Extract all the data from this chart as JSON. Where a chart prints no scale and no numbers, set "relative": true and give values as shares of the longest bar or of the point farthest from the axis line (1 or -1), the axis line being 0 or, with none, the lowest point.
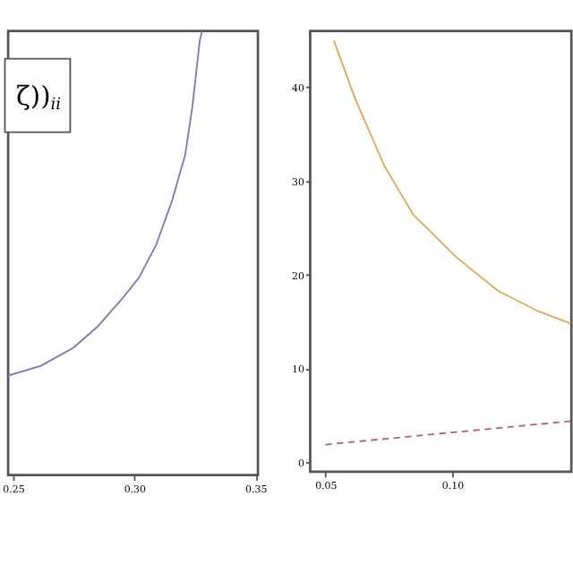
{
  "chart_data": [
    {
      "type": "line",
      "relative": true,
      "xlim": [
        0.248,
        0.351
      ],
      "xticks": [
        0.25,
        {
          "value": 0.3,
          "label": "0.30"
        },
        0.35
      ],
      "tick_labels": "x",
      "grid": false,
      "annotations": [
        "ζ))$_{ii}$"
      ],
      "series": [
        {
          "color": "#7a7ab4",
          "line_style": "solid",
          "x": [
            0.248,
            0.2615,
            0.275,
            0.285,
            0.295,
            0.302,
            0.309,
            0.3156,
            0.321,
            0.324,
            0.327,
            0.328
          ],
          "values": [
            0.224,
            0.246,
            0.287,
            0.335,
            0.397,
            0.445,
            0.518,
            0.618,
            0.721,
            0.831,
            0.978,
            1
          ]
        }
      ]
    },
    {
      "type": "line",
      "xlim": [
        0.044,
        0.147
      ],
      "ylim": [
        -1,
        46
      ],
      "xticks": [
        0.05,
        {
          "value": 0.1,
          "label": "0.10"
        }
      ],
      "yticks": [
        0,
        10,
        20,
        30,
        40
      ],
      "grid": false,
      "series": [
        {
          "color": "#e0a85a",
          "line_style": "solid",
          "x": [
            0.0533,
            0.062,
            0.0733,
            0.0847,
            0.102,
            0.118,
            0.1333,
            0.1467
          ],
          "values": [
            45.0,
            38.6,
            31.6,
            26.4,
            21.8,
            18.3,
            16.2,
            14.8
          ]
        },
        {
          "color": "#b0607a",
          "line_style": "dashed",
          "x": [
            0.05,
            0.1467
          ],
          "values": [
            1.9,
            4.4
          ]
        }
      ]
    }
  ]
}
